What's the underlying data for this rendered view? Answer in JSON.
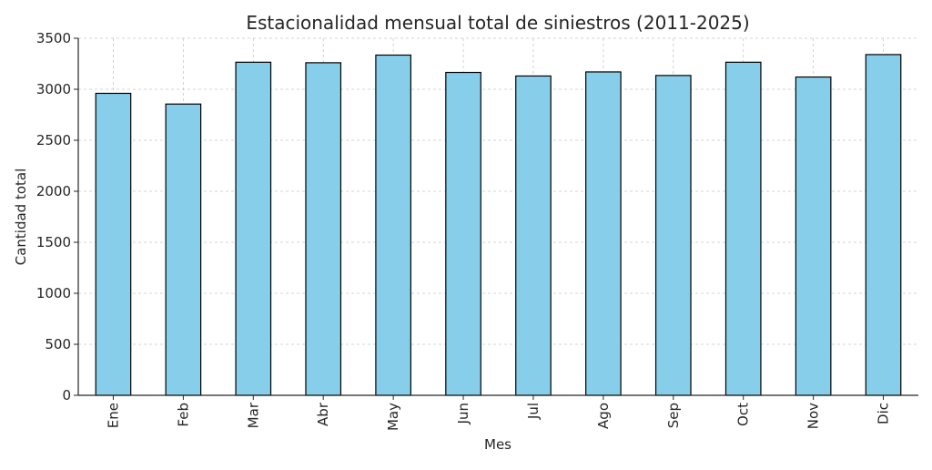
{
  "chart_data": {
    "type": "bar",
    "title": "Estacionalidad mensual total de siniestros (2011-2025)",
    "xlabel": "Mes",
    "ylabel": "Cantidad total",
    "categories": [
      "Ene",
      "Feb",
      "Mar",
      "Abr",
      "May",
      "Jun",
      "Jul",
      "Ago",
      "Sep",
      "Oct",
      "Nov",
      "Dic"
    ],
    "values": [
      2960,
      2855,
      3265,
      3260,
      3335,
      3165,
      3130,
      3170,
      3135,
      3265,
      3120,
      3340
    ],
    "ylim": [
      0,
      3500
    ],
    "yticks": [
      0,
      500,
      1000,
      1500,
      2000,
      2500,
      3000,
      3500
    ],
    "grid": true,
    "colors": {
      "bar_fill": "#87CEEB",
      "bar_edge": "#000000",
      "grid": "#b0b0b0"
    }
  }
}
